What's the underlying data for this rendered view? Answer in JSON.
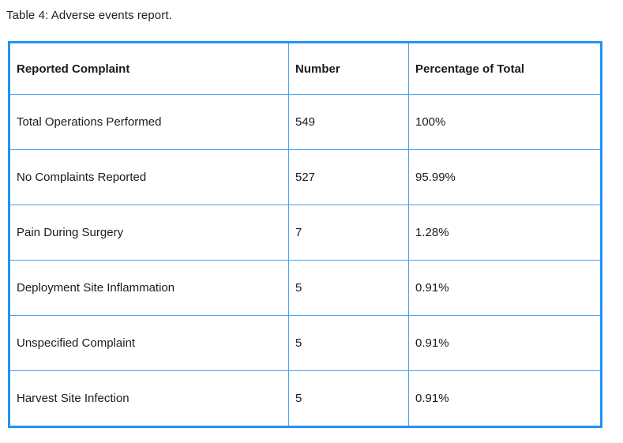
{
  "caption": "Table 4: Adverse events report.",
  "table": {
    "headers": [
      "Reported Complaint",
      "Number",
      "Percentage of Total"
    ],
    "rows": [
      [
        "Total Operations Performed",
        "549",
        "100%"
      ],
      [
        "No Complaints Reported",
        "527",
        "95.99%"
      ],
      [
        "Pain During Surgery",
        "7",
        "1.28%"
      ],
      [
        "Deployment Site Inflammation",
        "5",
        "0.91%"
      ],
      [
        "Unspecified Complaint",
        "5",
        "0.91%"
      ],
      [
        "Harvest Site Infection",
        "5",
        "0.91%"
      ]
    ]
  },
  "colors": {
    "outer_border": "#2492f4",
    "inner_border": "#4aa0f2",
    "text": "#1b1b1b",
    "background": "#ffffff"
  },
  "chart_data": {
    "type": "table",
    "title": "Table 4: Adverse events report.",
    "columns": [
      "Reported Complaint",
      "Number",
      "Percentage of Total"
    ],
    "categories": [
      "Total Operations Performed",
      "No Complaints Reported",
      "Pain During Surgery",
      "Deployment Site Inflammation",
      "Unspecified Complaint",
      "Harvest Site Infection"
    ],
    "series": [
      {
        "name": "Number",
        "values": [
          549,
          527,
          7,
          5,
          5,
          5
        ]
      },
      {
        "name": "Percentage of Total",
        "values": [
          100,
          95.99,
          1.28,
          0.91,
          0.91,
          0.91
        ]
      }
    ]
  }
}
